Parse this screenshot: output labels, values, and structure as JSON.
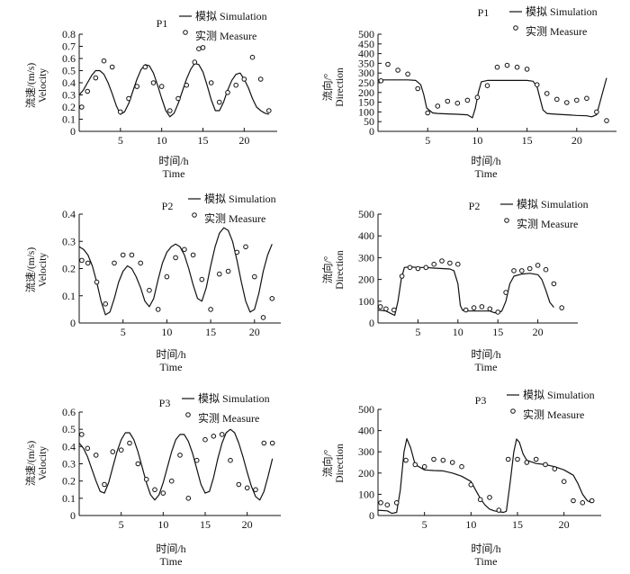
{
  "chart_data": [
    {
      "type": "line",
      "panel_title": "P1",
      "quantity": "velocity",
      "ylabel_cn": "流速/(m/s)",
      "ylabel_en": "Velocity",
      "xlabel_cn": "时间/h",
      "xlabel_en": "Time",
      "ylim": [
        0,
        0.8
      ],
      "yticks": [
        "0",
        "0.1",
        "0.2",
        "0.3",
        "0.4",
        "0.5",
        "0.6",
        "0.7",
        "0.8"
      ],
      "xlim": [
        0,
        24
      ],
      "xticks": [
        "5",
        "10",
        "15",
        "20"
      ],
      "legend": {
        "simulation": "模拟 Simulation",
        "measure": "实测 Measure"
      },
      "simulation": {
        "x": [
          0,
          0.5,
          1,
          1.5,
          2,
          2.5,
          3,
          3.5,
          4,
          4.5,
          5,
          5.5,
          6,
          6.5,
          7,
          7.5,
          8,
          8.5,
          9,
          9.5,
          10,
          10.5,
          11,
          11.5,
          12,
          12.5,
          13,
          13.5,
          14,
          14.5,
          15,
          15.5,
          16,
          16.5,
          17,
          17.5,
          18,
          18.5,
          19,
          19.5,
          20,
          20.5,
          21,
          21.5,
          22,
          22.5,
          23
        ],
        "y": [
          0.3,
          0.34,
          0.4,
          0.46,
          0.5,
          0.5,
          0.47,
          0.4,
          0.31,
          0.21,
          0.14,
          0.16,
          0.23,
          0.33,
          0.43,
          0.51,
          0.55,
          0.54,
          0.48,
          0.38,
          0.27,
          0.17,
          0.12,
          0.15,
          0.23,
          0.33,
          0.43,
          0.51,
          0.56,
          0.55,
          0.49,
          0.38,
          0.26,
          0.17,
          0.17,
          0.24,
          0.34,
          0.42,
          0.47,
          0.48,
          0.43,
          0.36,
          0.27,
          0.2,
          0.17,
          0.15,
          0.14
        ]
      },
      "measure": {
        "x": [
          0.3,
          1,
          2,
          3,
          4,
          5,
          6,
          7,
          8,
          9,
          10,
          11,
          12,
          13,
          14,
          14.5,
          15,
          16,
          17,
          18,
          19,
          20,
          21,
          22,
          23
        ],
        "y": [
          0.2,
          0.33,
          0.44,
          0.58,
          0.53,
          0.16,
          0.27,
          0.37,
          0.53,
          0.4,
          0.37,
          0.17,
          0.27,
          0.38,
          0.57,
          0.68,
          0.69,
          0.4,
          0.24,
          0.32,
          0.38,
          0.43,
          0.61,
          0.43,
          0.17
        ]
      }
    },
    {
      "type": "line",
      "panel_title": "P1",
      "quantity": "direction",
      "ylabel_cn": "流向/°",
      "ylabel_en": "Direction",
      "xlabel_cn": "时间/h",
      "xlabel_en": "Time",
      "ylim": [
        0,
        500
      ],
      "yticks": [
        "0",
        "50",
        "100",
        "150",
        "200",
        "250",
        "300",
        "350",
        "400",
        "450",
        "500"
      ],
      "xlim": [
        0,
        24
      ],
      "xticks": [
        "5",
        "10",
        "15",
        "20"
      ],
      "legend": {
        "simulation": "模拟 Simulation",
        "measure": "实测 Measure"
      },
      "simulation": {
        "x": [
          0,
          1,
          2,
          3,
          3.8,
          4.3,
          4.6,
          4.9,
          5.5,
          6,
          7,
          8,
          9,
          9.5,
          9.8,
          10.1,
          10.4,
          11,
          12,
          13,
          14,
          15,
          15.6,
          16,
          16.3,
          16.6,
          17,
          17.5,
          18,
          19,
          20,
          21,
          21.5,
          22,
          22.5,
          23
        ],
        "y": [
          265,
          265,
          265,
          265,
          262,
          240,
          190,
          120,
          95,
          92,
          90,
          88,
          85,
          70,
          120,
          200,
          255,
          262,
          262,
          262,
          262,
          262,
          258,
          230,
          170,
          110,
          92,
          90,
          88,
          85,
          82,
          80,
          75,
          85,
          180,
          275
        ]
      },
      "measure": {
        "x": [
          0.3,
          1,
          2,
          3,
          4,
          5,
          6,
          7,
          8,
          9,
          10,
          11,
          12,
          13,
          14,
          15,
          16,
          17,
          18,
          19,
          20,
          21,
          22,
          23
        ],
        "y": [
          260,
          345,
          315,
          295,
          220,
          95,
          130,
          155,
          145,
          160,
          175,
          235,
          330,
          340,
          330,
          320,
          240,
          195,
          165,
          148,
          160,
          170,
          100,
          55
        ]
      }
    },
    {
      "type": "line",
      "panel_title": "P2",
      "quantity": "velocity",
      "ylabel_cn": "流速/(m/s)",
      "ylabel_en": "Velocity",
      "xlabel_cn": "时间/h",
      "xlabel_en": "Time",
      "ylim": [
        0,
        0.4
      ],
      "yticks": [
        "0",
        "0.1",
        "0.2",
        "0.3",
        "0.4"
      ],
      "xlim": [
        0,
        23
      ],
      "xticks": [
        "5",
        "10",
        "15",
        "20"
      ],
      "legend": {
        "simulation": "模拟 Simulation",
        "measure": "实测 Measure"
      },
      "simulation": {
        "x": [
          0,
          0.5,
          1,
          1.5,
          2,
          2.5,
          3,
          3.5,
          4,
          4.5,
          5,
          5.5,
          6,
          6.5,
          7,
          7.5,
          8,
          8.5,
          9,
          9.5,
          10,
          10.5,
          11,
          11.5,
          12,
          12.5,
          13,
          13.5,
          14,
          14.5,
          15,
          15.5,
          16,
          16.5,
          17,
          17.5,
          18,
          18.5,
          19,
          19.5,
          20,
          20.5,
          21,
          21.5,
          22
        ],
        "y": [
          0.28,
          0.27,
          0.25,
          0.21,
          0.15,
          0.08,
          0.03,
          0.04,
          0.09,
          0.15,
          0.19,
          0.21,
          0.2,
          0.17,
          0.13,
          0.08,
          0.06,
          0.09,
          0.16,
          0.22,
          0.26,
          0.28,
          0.29,
          0.28,
          0.25,
          0.2,
          0.14,
          0.09,
          0.08,
          0.13,
          0.21,
          0.28,
          0.33,
          0.35,
          0.34,
          0.3,
          0.23,
          0.15,
          0.08,
          0.04,
          0.05,
          0.11,
          0.19,
          0.25,
          0.29
        ]
      },
      "measure": {
        "x": [
          0.3,
          1,
          2,
          3,
          4,
          5,
          6,
          7,
          8,
          9,
          10,
          11,
          12,
          13,
          14,
          15,
          16,
          17,
          18,
          19,
          20,
          21,
          22
        ],
        "y": [
          0.23,
          0.22,
          0.15,
          0.07,
          0.22,
          0.25,
          0.25,
          0.22,
          0.12,
          0.05,
          0.17,
          0.24,
          0.27,
          0.25,
          0.16,
          0.05,
          0.18,
          0.19,
          0.26,
          0.28,
          0.17,
          0.02,
          0.09
        ]
      }
    },
    {
      "type": "line",
      "panel_title": "P2",
      "quantity": "direction",
      "ylabel_cn": "流向/°",
      "ylabel_en": "Direction",
      "xlabel_cn": "时间/h",
      "xlabel_en": "Time",
      "ylim": [
        0,
        500
      ],
      "yticks": [
        "0",
        "100",
        "200",
        "300",
        "400",
        "500"
      ],
      "xlim": [
        0,
        25
      ],
      "xticks": [
        "5",
        "10",
        "15",
        "20"
      ],
      "legend": {
        "simulation": "模拟 Simulation",
        "measure": "实测 Measure"
      },
      "simulation": {
        "x": [
          0,
          1,
          1.8,
          2.1,
          2.5,
          2.9,
          3.3,
          4,
          5,
          6,
          7,
          8,
          9,
          9.5,
          10,
          10.3,
          10.6,
          11,
          12,
          13,
          14,
          14.5,
          15,
          15.5,
          16,
          16.5,
          17,
          18,
          19,
          20,
          20.5,
          21,
          21.5,
          22
        ],
        "y": [
          60,
          55,
          40,
          35,
          100,
          200,
          255,
          258,
          255,
          255,
          252,
          250,
          248,
          240,
          180,
          80,
          58,
          55,
          55,
          55,
          55,
          48,
          45,
          55,
          100,
          180,
          215,
          225,
          228,
          222,
          200,
          150,
          95,
          72
        ]
      },
      "measure": {
        "x": [
          0.3,
          1,
          2,
          3,
          4,
          5,
          6,
          7,
          8,
          9,
          10,
          11,
          12,
          13,
          14,
          15,
          16,
          17,
          18,
          19,
          20,
          21,
          22,
          23
        ],
        "y": [
          75,
          65,
          60,
          215,
          255,
          250,
          255,
          270,
          285,
          275,
          270,
          60,
          70,
          75,
          65,
          50,
          140,
          240,
          240,
          250,
          265,
          245,
          180,
          70
        ]
      }
    },
    {
      "type": "line",
      "panel_title": "P3",
      "quantity": "velocity",
      "ylabel_cn": "流速/(m/s)",
      "ylabel_en": "Velocity",
      "xlabel_cn": "时间/h",
      "xlabel_en": "Time",
      "ylim": [
        0,
        0.6
      ],
      "yticks": [
        "0",
        "0.1",
        "0.2",
        "0.3",
        "0.4",
        "0.5",
        "0.6"
      ],
      "xlim": [
        0,
        24
      ],
      "xticks": [
        "5",
        "10",
        "15",
        "20"
      ],
      "legend": {
        "simulation": "模拟 Simulation",
        "measure": "实测 Measure"
      },
      "simulation": {
        "x": [
          0,
          0.5,
          1,
          1.5,
          2,
          2.5,
          3,
          3.5,
          4,
          4.5,
          5,
          5.5,
          6,
          6.5,
          7,
          7.5,
          8,
          8.5,
          9,
          9.5,
          10,
          10.5,
          11,
          11.5,
          12,
          12.5,
          13,
          13.5,
          14,
          14.5,
          15,
          15.5,
          16,
          16.5,
          17,
          17.5,
          18,
          18.5,
          19,
          19.5,
          20,
          20.5,
          21,
          21.5,
          22,
          22.5,
          23
        ],
        "y": [
          0.42,
          0.39,
          0.34,
          0.27,
          0.2,
          0.14,
          0.13,
          0.19,
          0.28,
          0.37,
          0.44,
          0.48,
          0.48,
          0.44,
          0.37,
          0.28,
          0.19,
          0.12,
          0.09,
          0.12,
          0.19,
          0.28,
          0.37,
          0.44,
          0.47,
          0.47,
          0.43,
          0.36,
          0.27,
          0.18,
          0.13,
          0.14,
          0.22,
          0.33,
          0.42,
          0.48,
          0.5,
          0.48,
          0.42,
          0.34,
          0.25,
          0.17,
          0.11,
          0.09,
          0.14,
          0.23,
          0.33
        ]
      },
      "measure": {
        "x": [
          0.3,
          1,
          2,
          3,
          4,
          5,
          6,
          7,
          8,
          9,
          10,
          11,
          12,
          13,
          14,
          15,
          16,
          17,
          18,
          19,
          20,
          21,
          22,
          23
        ],
        "y": [
          0.47,
          0.39,
          0.35,
          0.18,
          0.37,
          0.38,
          0.42,
          0.3,
          0.21,
          0.15,
          0.13,
          0.2,
          0.35,
          0.1,
          0.32,
          0.44,
          0.46,
          0.47,
          0.32,
          0.18,
          0.16,
          0.15,
          0.42,
          0.42
        ]
      }
    },
    {
      "type": "line",
      "panel_title": "P3",
      "quantity": "direction",
      "ylabel_cn": "流向/°",
      "ylabel_en": "Direction",
      "xlabel_cn": "时间/h",
      "xlabel_en": "Time",
      "ylim": [
        0,
        500
      ],
      "yticks": [
        "0",
        "100",
        "200",
        "300",
        "400",
        "500"
      ],
      "xlim": [
        0,
        24
      ],
      "xticks": [
        "5",
        "10",
        "15",
        "20"
      ],
      "legend": {
        "simulation": "模拟 Simulation",
        "measure": "实测 Measure"
      },
      "simulation": {
        "x": [
          0,
          1,
          1.5,
          2,
          2.4,
          2.8,
          3.1,
          3.5,
          4,
          5,
          6,
          7,
          8,
          9,
          10,
          10.5,
          11,
          11.5,
          12,
          12.5,
          13,
          13.5,
          13.8,
          14.2,
          14.6,
          14.9,
          15.2,
          15.6,
          16,
          17,
          18,
          19,
          20,
          21,
          21.5,
          22,
          22.5,
          23
        ],
        "y": [
          25,
          22,
          10,
          15,
          120,
          300,
          362,
          320,
          240,
          215,
          212,
          210,
          200,
          185,
          160,
          120,
          80,
          50,
          30,
          22,
          18,
          15,
          20,
          150,
          300,
          360,
          345,
          290,
          260,
          245,
          240,
          230,
          215,
          190,
          150,
          100,
          70,
          60
        ]
      },
      "measure": {
        "x": [
          0.3,
          1,
          2,
          3,
          4,
          5,
          6,
          7,
          8,
          9,
          10,
          11,
          12,
          13,
          14,
          15,
          16,
          17,
          18,
          19,
          20,
          21,
          22,
          23
        ],
        "y": [
          60,
          50,
          60,
          260,
          240,
          230,
          265,
          260,
          250,
          230,
          145,
          75,
          85,
          25,
          265,
          265,
          250,
          265,
          240,
          220,
          160,
          70,
          60,
          70
        ]
      }
    }
  ]
}
